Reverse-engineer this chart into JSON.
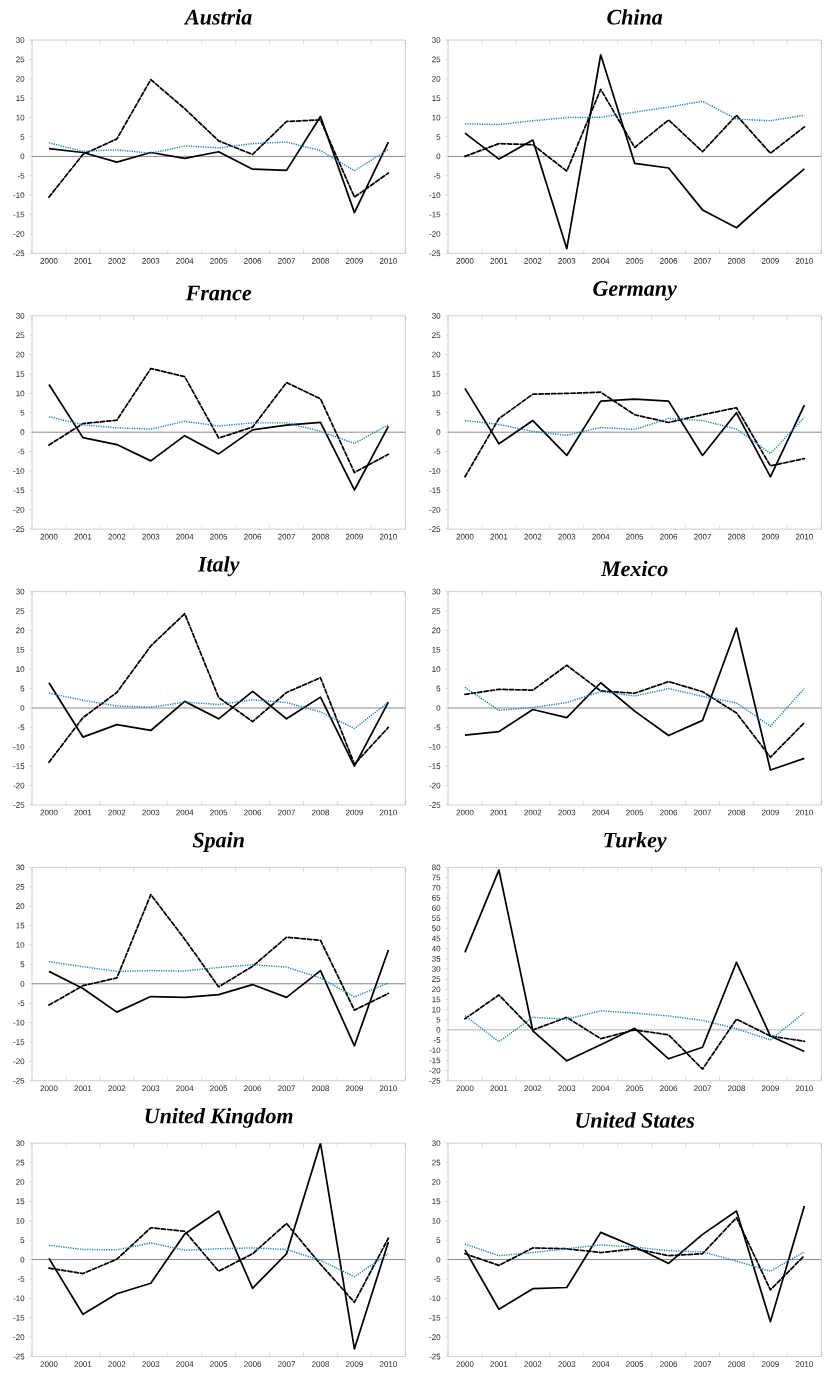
{
  "chart_data": [
    {
      "type": "line",
      "title": "Austria",
      "categories": [
        "2000",
        "2001",
        "2002",
        "2003",
        "2004",
        "2005",
        "2006",
        "2007",
        "2008",
        "2009",
        "2010"
      ],
      "ylim": [
        -25,
        30
      ],
      "yticks": [
        -25,
        -20,
        -15,
        -10,
        -5,
        0,
        5,
        10,
        15,
        20,
        25,
        30
      ],
      "ref_lines": [
        {
          "axis": "y",
          "value": 0,
          "color": "#808080"
        }
      ],
      "series": [
        {
          "color": "#000000",
          "line_style": "solid",
          "values": [
            2,
            1,
            -1.5,
            1,
            -0.5,
            1.2,
            -3.3,
            -3.6,
            10.3,
            -14.5,
            3.7
          ]
        },
        {
          "color": "#000000",
          "line_style": "dashed",
          "values": [
            -10.5,
            0.5,
            4.5,
            19.8,
            12.3,
            4,
            0.5,
            9,
            9.4,
            -10.5,
            -4.3
          ]
        },
        {
          "color": "#1a7fc0",
          "line_style": "dotted",
          "values": [
            3.5,
            1.3,
            1.7,
            0.8,
            2.7,
            2.2,
            3.3,
            3.7,
            1.5,
            -3.7,
            1.8
          ]
        }
      ]
    },
    {
      "type": "line",
      "title": "China",
      "categories": [
        "2000",
        "2001",
        "2002",
        "2003",
        "2004",
        "2005",
        "2006",
        "2007",
        "2008",
        "2009",
        "2010"
      ],
      "ylim": [
        -25,
        30
      ],
      "yticks": [
        -25,
        -20,
        -15,
        -10,
        -5,
        0,
        5,
        10,
        15,
        20,
        25,
        30
      ],
      "ref_lines": [
        {
          "axis": "y",
          "value": 0,
          "color": "#808080"
        }
      ],
      "series": [
        {
          "color": "#000000",
          "line_style": "solid",
          "values": [
            6,
            -0.7,
            4.2,
            -23.8,
            26.2,
            -1.8,
            -3,
            -13.8,
            -18.4,
            -10.6,
            -3.2
          ]
        },
        {
          "color": "#000000",
          "line_style": "dashed",
          "values": [
            0,
            3.3,
            3,
            -3.8,
            17.3,
            2.3,
            9.4,
            1.2,
            10.6,
            0.8,
            7.6
          ]
        },
        {
          "color": "#1a7fc0",
          "line_style": "dotted",
          "values": [
            8.4,
            8.2,
            9.2,
            10,
            10.1,
            11.4,
            12.7,
            14.2,
            9.6,
            9.2,
            10.6
          ]
        }
      ]
    },
    {
      "type": "line",
      "title": "France",
      "categories": [
        "2000",
        "2001",
        "2002",
        "2003",
        "2004",
        "2005",
        "2006",
        "2007",
        "2008",
        "2009",
        "2010"
      ],
      "ylim": [
        -25,
        30
      ],
      "yticks": [
        -25,
        -20,
        -15,
        -10,
        -5,
        0,
        5,
        10,
        15,
        20,
        25,
        30
      ],
      "ref_lines": [
        {
          "axis": "y",
          "value": 0,
          "color": "#808080"
        }
      ],
      "series": [
        {
          "color": "#000000",
          "line_style": "solid",
          "values": [
            12.3,
            -1.4,
            -3.2,
            -7.4,
            -0.9,
            -5.6,
            0.6,
            1.8,
            2.5,
            -14.9,
            1.5
          ]
        },
        {
          "color": "#000000",
          "line_style": "dashed",
          "values": [
            -3.3,
            2.2,
            3.1,
            16.4,
            14.3,
            -1.5,
            1.3,
            12.8,
            8.6,
            -10.4,
            -5.7
          ]
        },
        {
          "color": "#1a7fc0",
          "line_style": "dotted",
          "values": [
            4,
            1.9,
            1.1,
            0.8,
            2.8,
            1.6,
            2.4,
            2.4,
            0.2,
            -2.9,
            1.9
          ]
        }
      ]
    },
    {
      "type": "line",
      "title": "Germany",
      "categories": [
        "2000",
        "2001",
        "2002",
        "2003",
        "2004",
        "2005",
        "2006",
        "2007",
        "2008",
        "2009",
        "2010"
      ],
      "ylim": [
        -25,
        30
      ],
      "yticks": [
        -25,
        -20,
        -15,
        -10,
        -5,
        0,
        5,
        10,
        15,
        20,
        25,
        30
      ],
      "ref_lines": [
        {
          "axis": "y",
          "value": 0,
          "color": "#808080"
        }
      ],
      "series": [
        {
          "color": "#000000",
          "line_style": "solid",
          "values": [
            11.3,
            -3,
            3,
            -6,
            8,
            8.5,
            8,
            -6,
            5,
            -11.5,
            7
          ]
        },
        {
          "color": "#000000",
          "line_style": "dashed",
          "values": [
            -11.5,
            3.5,
            9.8,
            10,
            10.3,
            4.5,
            2.5,
            4.5,
            6.3,
            -8.7,
            -6.8
          ]
        },
        {
          "color": "#1a7fc0",
          "line_style": "dotted",
          "values": [
            3,
            2,
            0.2,
            -0.8,
            1.2,
            0.7,
            3.5,
            3,
            0.8,
            -5.5,
            3.8
          ]
        }
      ]
    },
    {
      "type": "line",
      "title": "Italy",
      "categories": [
        "2000",
        "2001",
        "2002",
        "2003",
        "2004",
        "2005",
        "2006",
        "2007",
        "2008",
        "2009",
        "2010"
      ],
      "ylim": [
        -25,
        30
      ],
      "yticks": [
        -25,
        -20,
        -15,
        -10,
        -5,
        0,
        5,
        10,
        15,
        20,
        25,
        30
      ],
      "ref_lines": [
        {
          "axis": "y",
          "value": 0,
          "color": "#808080"
        }
      ],
      "series": [
        {
          "color": "#000000",
          "line_style": "solid",
          "values": [
            6.5,
            -7.5,
            -4.3,
            -5.8,
            1.7,
            -2.8,
            4.3,
            -2.8,
            2.8,
            -15,
            1.5
          ]
        },
        {
          "color": "#000000",
          "line_style": "dashed",
          "values": [
            -14,
            -2.5,
            4,
            16,
            24.3,
            2.7,
            -3.5,
            4,
            7.8,
            -14.5,
            -5
          ]
        },
        {
          "color": "#1a7fc0",
          "line_style": "dotted",
          "values": [
            3.8,
            2,
            0.5,
            0.2,
            1.5,
            0.9,
            2.1,
            1.4,
            -1,
            -5.3,
            1.5
          ]
        }
      ]
    },
    {
      "type": "line",
      "title": "Mexico",
      "categories": [
        "2000",
        "2001",
        "2002",
        "2003",
        "2004",
        "2005",
        "2006",
        "2007",
        "2008",
        "2009",
        "2010"
      ],
      "ylim": [
        -25,
        30
      ],
      "yticks": [
        -25,
        -20,
        -15,
        -10,
        -5,
        0,
        5,
        10,
        15,
        20,
        25,
        30
      ],
      "ref_lines": [
        {
          "axis": "y",
          "value": 0,
          "color": "#808080"
        }
      ],
      "series": [
        {
          "color": "#000000",
          "line_style": "solid",
          "values": [
            -7,
            -6.1,
            -0.4,
            -2.5,
            6.5,
            -0.8,
            -7.1,
            -3.2,
            20.6,
            -16,
            -13
          ]
        },
        {
          "color": "#000000",
          "line_style": "dashed",
          "values": [
            3.5,
            4.8,
            4.6,
            11,
            4.4,
            3.8,
            6.8,
            4.2,
            -1.3,
            -12.7,
            -3.8
          ]
        },
        {
          "color": "#1a7fc0",
          "line_style": "dotted",
          "values": [
            5.3,
            -0.6,
            0.1,
            1.4,
            4.2,
            3.1,
            5,
            3,
            1.3,
            -4.7,
            5
          ]
        }
      ]
    },
    {
      "type": "line",
      "title": "Spain",
      "categories": [
        "2000",
        "2001",
        "2002",
        "2003",
        "2004",
        "2005",
        "2006",
        "2007",
        "2008",
        "2009",
        "2010"
      ],
      "ylim": [
        -25,
        30
      ],
      "yticks": [
        -25,
        -20,
        -15,
        -10,
        -5,
        0,
        5,
        10,
        15,
        20,
        25,
        30
      ],
      "ref_lines": [
        {
          "axis": "y",
          "value": 0,
          "color": "#808080"
        }
      ],
      "series": [
        {
          "color": "#000000",
          "line_style": "solid",
          "values": [
            3.2,
            -1.2,
            -7.3,
            -3.3,
            -3.5,
            -2.8,
            -0.2,
            -3.5,
            3.4,
            -16,
            8.7
          ]
        },
        {
          "color": "#000000",
          "line_style": "dashed",
          "values": [
            -5.5,
            -0.5,
            1.5,
            23,
            11.5,
            -0.8,
            4.5,
            12,
            11.2,
            -6.8,
            -2.5
          ]
        },
        {
          "color": "#1a7fc0",
          "line_style": "dotted",
          "values": [
            5.7,
            4.4,
            3.2,
            3.4,
            3.3,
            4.2,
            4.9,
            4.3,
            1.5,
            -3.4,
            0.2
          ]
        }
      ]
    },
    {
      "type": "line",
      "title": "Turkey",
      "categories": [
        "2000",
        "2001",
        "2002",
        "2003",
        "2004",
        "2005",
        "2006",
        "2007",
        "2008",
        "2009",
        "2010"
      ],
      "ylim": [
        -25,
        80
      ],
      "yticks": [
        -25,
        -20,
        -15,
        -10,
        -5,
        0,
        5,
        10,
        15,
        20,
        25,
        30,
        35,
        40,
        45,
        50,
        55,
        60,
        65,
        70,
        75,
        80
      ],
      "ref_lines": [
        {
          "axis": "y",
          "value": 0,
          "color": "#808080"
        }
      ],
      "series": [
        {
          "color": "#000000",
          "line_style": "solid",
          "values": [
            38.2,
            78.7,
            -0.5,
            -15.2,
            -7.3,
            0.8,
            -14.2,
            -8.5,
            33.3,
            -3,
            -10.6
          ]
        },
        {
          "color": "#000000",
          "line_style": "dashed",
          "values": [
            5.5,
            17.2,
            0,
            6.2,
            -4.3,
            0,
            -2.4,
            -19.3,
            5.3,
            -3,
            -5.6
          ]
        },
        {
          "color": "#1a7fc0",
          "line_style": "dotted",
          "values": [
            7,
            -5.8,
            6.2,
            5.3,
            9.4,
            8.3,
            6.9,
            4.7,
            0.6,
            -4.9,
            8.6
          ]
        }
      ]
    },
    {
      "type": "line",
      "title": "United Kingdom",
      "categories": [
        "2000",
        "2001",
        "2002",
        "2003",
        "2004",
        "2005",
        "2006",
        "2007",
        "2008",
        "2009",
        "2010"
      ],
      "ylim": [
        -25,
        30
      ],
      "yticks": [
        -25,
        -20,
        -15,
        -10,
        -5,
        0,
        5,
        10,
        15,
        20,
        25,
        30
      ],
      "ref_lines": [
        {
          "axis": "y",
          "value": 0,
          "color": "#808080"
        }
      ],
      "series": [
        {
          "color": "#000000",
          "line_style": "solid",
          "values": [
            0.3,
            -14.1,
            -8.8,
            -6.1,
            6.6,
            12.5,
            -7.4,
            1.5,
            30,
            -23,
            4.5
          ]
        },
        {
          "color": "#000000",
          "line_style": "dashed",
          "values": [
            -2.2,
            -3.6,
            0.1,
            8.2,
            7.3,
            -3,
            1.5,
            9.3,
            -1.2,
            -11,
            5.5
          ]
        },
        {
          "color": "#1a7fc0",
          "line_style": "dotted",
          "values": [
            3.7,
            2.6,
            2.5,
            4.3,
            2.4,
            2.8,
            3,
            2.6,
            -0.2,
            -4.4,
            1.5
          ]
        }
      ]
    },
    {
      "type": "line",
      "title": "United States",
      "categories": [
        "2000",
        "2001",
        "2002",
        "2003",
        "2004",
        "2005",
        "2006",
        "2007",
        "2008",
        "2009",
        "2010"
      ],
      "ylim": [
        -25,
        30
      ],
      "yticks": [
        -25,
        -20,
        -15,
        -10,
        -5,
        0,
        5,
        10,
        15,
        20,
        25,
        30
      ],
      "ref_lines": [
        {
          "axis": "y",
          "value": 0,
          "color": "#808080"
        }
      ],
      "series": [
        {
          "color": "#000000",
          "line_style": "solid",
          "values": [
            2.5,
            -12.8,
            -7.5,
            -7.2,
            7,
            3.3,
            -1,
            6.5,
            12.5,
            -16,
            13.8
          ]
        },
        {
          "color": "#000000",
          "line_style": "dashed",
          "values": [
            1.5,
            -1.5,
            3,
            2.8,
            1.8,
            2.8,
            1,
            1.5,
            10.8,
            -7.8,
            1
          ]
        },
        {
          "color": "#1a7fc0",
          "line_style": "dotted",
          "values": [
            4,
            1,
            1.8,
            2.8,
            3.8,
            3.2,
            2.3,
            2,
            -0.4,
            -3,
            2
          ]
        }
      ]
    }
  ]
}
